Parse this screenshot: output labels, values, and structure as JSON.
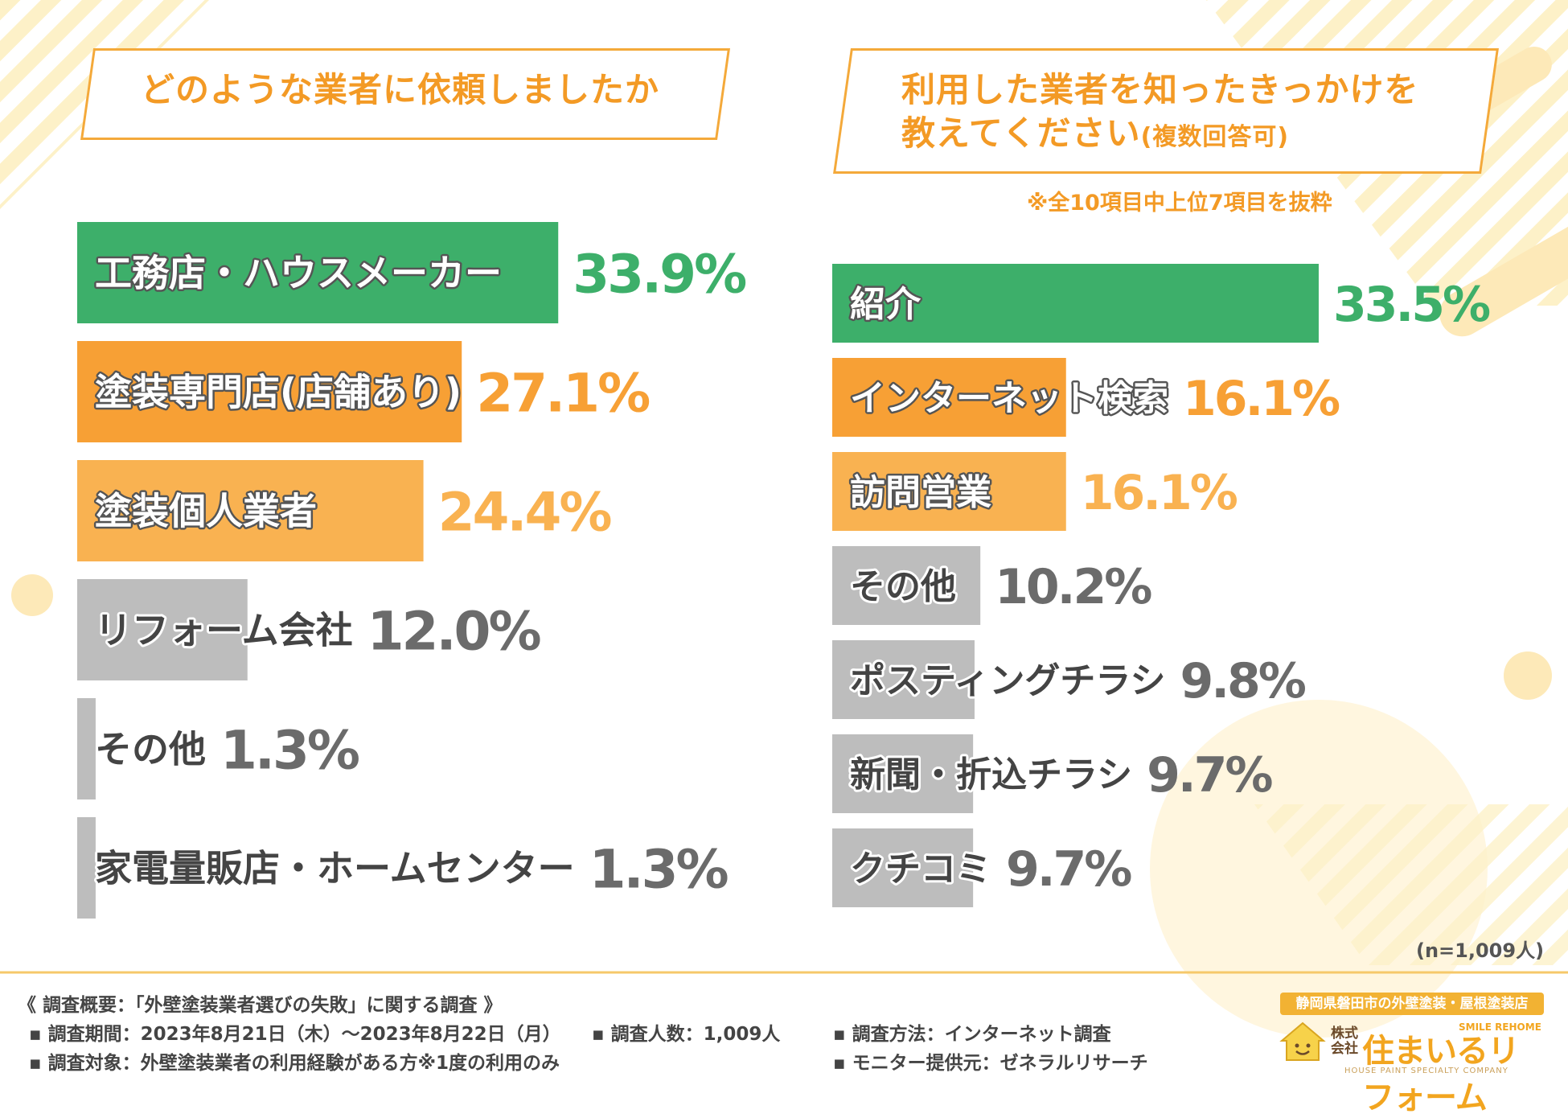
{
  "left": {
    "question": "どのような業者に依頼しましたか"
  },
  "right": {
    "question_line1": "利用した業者を知ったきっかけを",
    "question_line2": "教えてください",
    "question_suffix": "(複数回答可)",
    "note": "※全10項目中上位7項目を抜粋",
    "sample_note": "(n=1,009人)"
  },
  "chart_data": [
    {
      "type": "bar",
      "orientation": "horizontal",
      "title": "どのような業者に依頼しましたか",
      "categories": [
        "工務店・ハウスメーカー",
        "塗装専門店(店舗あり)",
        "塗装個人業者",
        "リフォーム会社",
        "その他",
        "家電量販店・ホームセンター"
      ],
      "values": [
        33.9,
        27.1,
        24.4,
        12.0,
        1.3,
        1.3
      ],
      "value_labels": [
        "33.9%",
        "27.1%",
        "24.4%",
        "12.0%",
        "1.3%",
        "1.3%"
      ],
      "colors": [
        "#3daf6a",
        "#f7a035",
        "#f9b251",
        "#bdbdbd",
        "#bdbdbd",
        "#bdbdbd"
      ],
      "xlim": [
        0,
        34
      ]
    },
    {
      "type": "bar",
      "orientation": "horizontal",
      "title": "利用した業者を知ったきっかけを教えてください(複数回答可)",
      "categories": [
        "紹介",
        "インターネット検索",
        "訪問営業",
        "その他",
        "ポスティングチラシ",
        "新聞・折込チラシ",
        "クチコミ"
      ],
      "values": [
        33.5,
        16.1,
        16.1,
        10.2,
        9.8,
        9.7,
        9.7
      ],
      "value_labels": [
        "33.5%",
        "16.1%",
        "16.1%",
        "10.2%",
        "9.8%",
        "9.7%",
        "9.7%"
      ],
      "colors": [
        "#3daf6a",
        "#f7a035",
        "#f9b251",
        "#bdbdbd",
        "#bdbdbd",
        "#bdbdbd",
        "#bdbdbd"
      ],
      "xlim": [
        0,
        34
      ]
    }
  ],
  "footer": {
    "survey_title": "《 調査概要：「外壁塗装業者選びの失敗」に関する調査 》",
    "period": "▪ 調査期間：2023年8月21日（木）～2023年8月22日（月）",
    "count": "▪ 調査人数：1,009人",
    "method": "▪ 調査方法：インターネット調査",
    "target": "▪ 調査対象：外壁塗装業者の利用経験がある方※1度の利用のみ",
    "provider": "▪ モニター提供元：ゼネラルリサーチ"
  },
  "logo": {
    "banner": "静岡県磐田市の外壁塗装・屋根塗装店",
    "kaisha": "株式会社",
    "name": "住まいるリフォーム",
    "english": "SMILE REHOME",
    "tagline": "HOUSE PAINT SPECIALTY COMPANY"
  },
  "colors": {
    "accent_orange": "#f39a25",
    "green": "#3daf6a",
    "gray": "#bdbdbd",
    "value_gray": "#6b6b6b"
  }
}
